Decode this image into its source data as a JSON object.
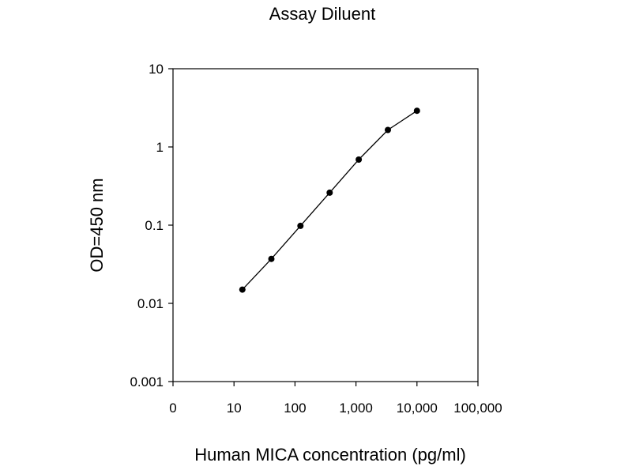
{
  "chart_data": {
    "type": "line",
    "title": "Assay Diluent",
    "xlabel": "Human MICA concentration (pg/ml)",
    "ylabel": "OD=450 nm",
    "x_scale": "log",
    "y_scale": "log",
    "x_tick_labels": [
      "0",
      "10",
      "100",
      "1,000",
      "10,000",
      "100,000"
    ],
    "y_tick_labels": [
      "10",
      "1",
      "0.1",
      "0.01",
      "0.001"
    ],
    "xlim": [
      1,
      100000
    ],
    "ylim": [
      0.001,
      10
    ],
    "grid": false,
    "legend": "none",
    "marker": "circle",
    "color": "#000000",
    "series": [
      {
        "x": [
          13.7,
          41,
          123,
          370,
          1111,
          3333,
          10000
        ],
        "values": [
          0.015,
          0.037,
          0.098,
          0.26,
          0.69,
          1.65,
          2.9
        ]
      }
    ]
  }
}
